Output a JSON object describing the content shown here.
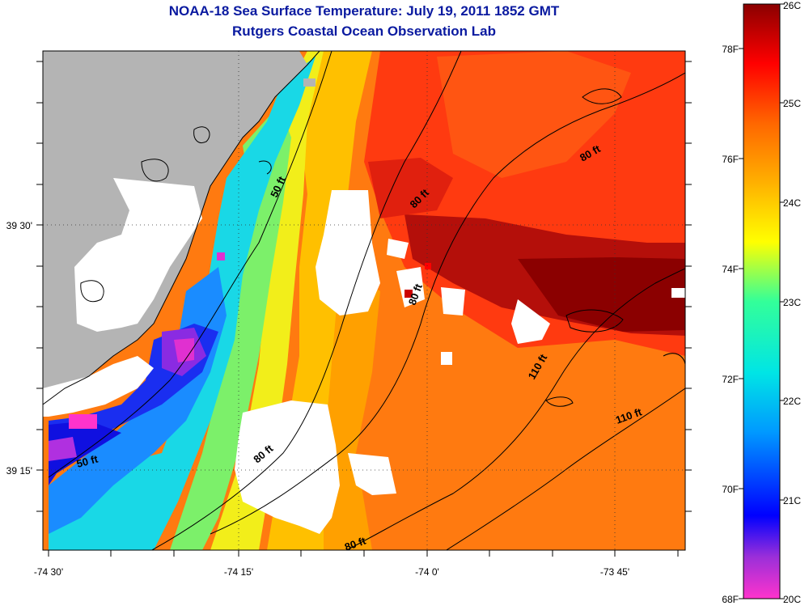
{
  "header": {
    "title": "NOAA-18 Sea Surface Temperature:  July 19, 2011 1852 GMT",
    "subtitle": "Rutgers Coastal Ocean Observation Lab"
  },
  "map": {
    "longitude_ticks": [
      "-74 30'",
      "-74 15'",
      "-74 0'",
      "-73 45'"
    ],
    "latitude_ticks": [
      "39 30'",
      "39 15'"
    ],
    "contour_labels": [
      "50 ft",
      "50 ft",
      "80 ft",
      "80 ft",
      "80 ft",
      "80 ft",
      "80 ft",
      "110 ft",
      "110 ft"
    ]
  },
  "colorbar": {
    "celsius_labels": [
      "26C",
      "25C",
      "24C",
      "23C",
      "22C",
      "21C",
      "20C"
    ],
    "fahrenheit_labels": [
      "78F",
      "76F",
      "74F",
      "72F",
      "70F",
      "68F"
    ],
    "color_stops": [
      "#ff33cc",
      "#9b2fd9",
      "#0000ff",
      "#0099ff",
      "#00e5e5",
      "#33ff99",
      "#ffff00",
      "#ffb000",
      "#ff6600",
      "#ff0000",
      "#8b0000"
    ]
  }
}
